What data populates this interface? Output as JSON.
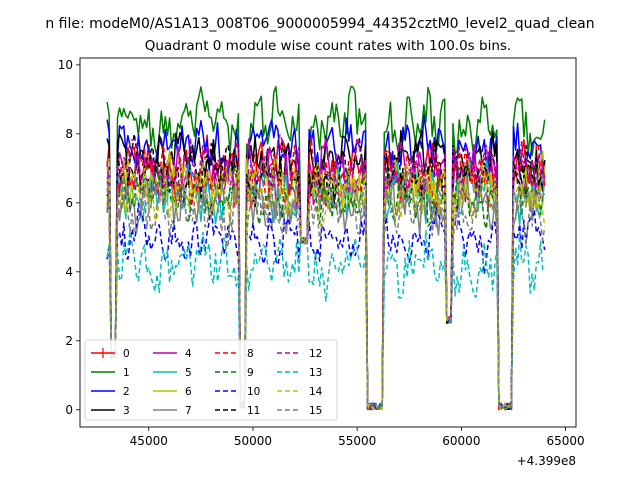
{
  "suptitle": "n file: modeM0/AS1A13_008T06_9000005994_44352cztM0_level2_quad_clean",
  "chart_data": {
    "type": "line",
    "title": "Quadrant 0 module wise count rates with 100.0s bins.",
    "xlabel": "",
    "ylabel": "",
    "x_offset_label": "+4.399e8",
    "xlim": [
      41700,
      65500
    ],
    "ylim": [
      -0.5,
      10.2
    ],
    "xticks": [
      45000,
      50000,
      55000,
      60000,
      65000
    ],
    "xtick_labels": [
      "45000",
      "50000",
      "55000",
      "60000",
      "65000"
    ],
    "yticks": [
      0,
      2,
      4,
      6,
      8,
      10
    ],
    "ytick_labels": [
      "0",
      "2",
      "4",
      "6",
      "8",
      "10"
    ],
    "grid": false,
    "legend_position": "lower-left",
    "legend_columns": 4,
    "x_start": 43000,
    "x_step": 100,
    "n_points": 211,
    "gaps": [
      {
        "from": 43200,
        "to": 43400,
        "min": 1.5
      },
      {
        "from": 49400,
        "to": 49600,
        "min": 0.05
      },
      {
        "from": 52300,
        "to": 52600,
        "min": 4.8
      },
      {
        "from": 55500,
        "to": 56200,
        "min": 0.0
      },
      {
        "from": 59300,
        "to": 59500,
        "min": 2.5
      },
      {
        "from": 61800,
        "to": 62400,
        "min": 0.0
      }
    ],
    "series": [
      {
        "name": "0",
        "color": "#ff0000",
        "dash": "solid",
        "marker": "plus",
        "base": 6.9
      },
      {
        "name": "1",
        "color": "#008000",
        "dash": "solid",
        "base": 8.3
      },
      {
        "name": "2",
        "color": "#0000ff",
        "dash": "solid",
        "base": 7.6
      },
      {
        "name": "3",
        "color": "#000000",
        "dash": "solid",
        "base": 7.2
      },
      {
        "name": "4",
        "color": "#bf00bf",
        "dash": "solid",
        "base": 6.8
      },
      {
        "name": "5",
        "color": "#00bfbf",
        "dash": "solid",
        "base": 6.3
      },
      {
        "name": "6",
        "color": "#bfbf00",
        "dash": "solid",
        "base": 6.5
      },
      {
        "name": "7",
        "color": "#808080",
        "dash": "solid",
        "base": 6.0
      },
      {
        "name": "8",
        "color": "#ff0000",
        "dash": "dashed",
        "base": 6.8
      },
      {
        "name": "9",
        "color": "#008000",
        "dash": "dashed",
        "base": 6.2
      },
      {
        "name": "10",
        "color": "#0000ff",
        "dash": "dashed",
        "base": 5.0
      },
      {
        "name": "11",
        "color": "#000000",
        "dash": "dashed",
        "base": 6.9
      },
      {
        "name": "12",
        "color": "#bf00bf",
        "dash": "dashed",
        "base": 7.0
      },
      {
        "name": "13",
        "color": "#00bfbf",
        "dash": "dashed",
        "base": 4.2
      },
      {
        "name": "14",
        "color": "#bfbf00",
        "dash": "dashed",
        "base": 6.3
      },
      {
        "name": "15",
        "color": "#808080",
        "dash": "dashed",
        "base": 5.8
      }
    ]
  }
}
